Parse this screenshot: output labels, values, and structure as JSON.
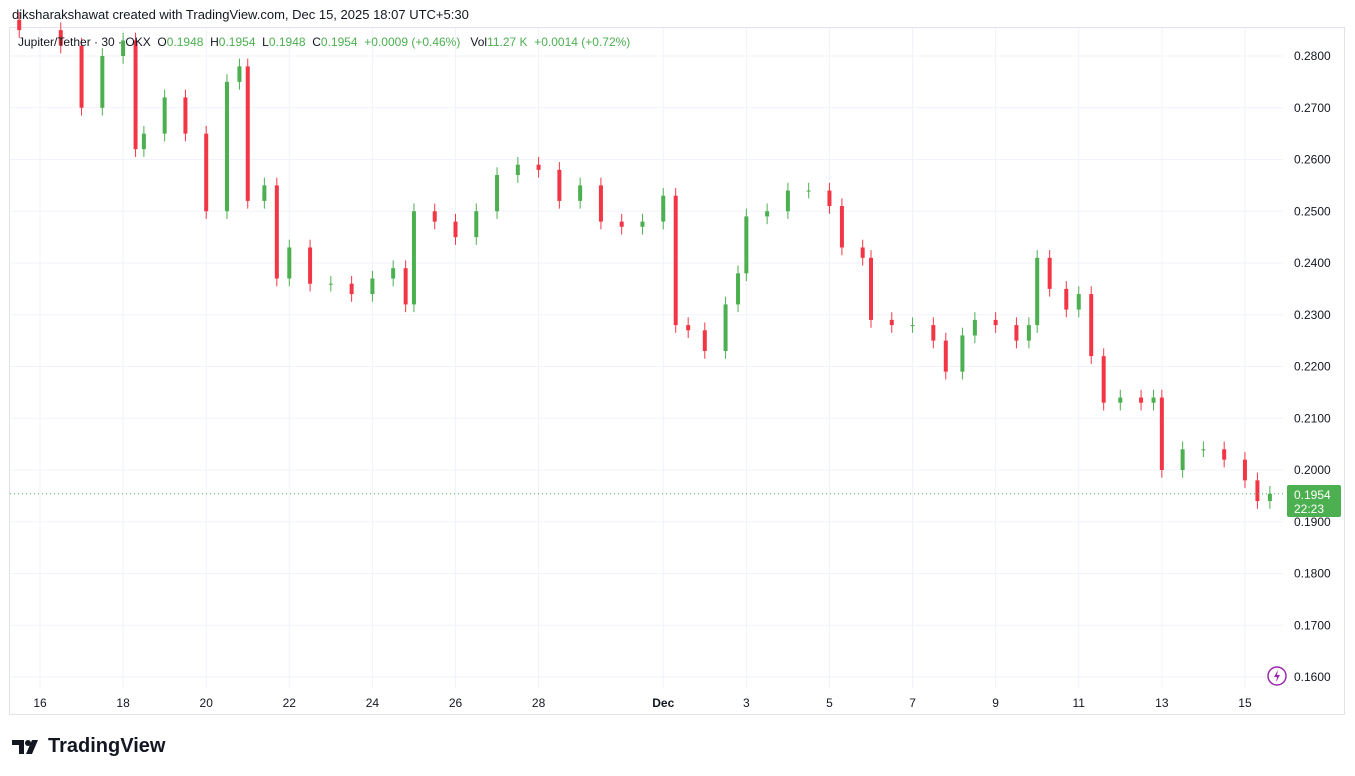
{
  "credit": "diksharakshawat created with TradingView.com, Dec 15, 2025 18:07 UTC+5:30",
  "legend": {
    "symbol": "Jupiter/Tether · 30 · OKX",
    "o_label": "O",
    "o": "0.1948",
    "h_label": "H",
    "h": "0.1954",
    "l_label": "L",
    "l": "0.1948",
    "c_label": "C",
    "c": "0.1954",
    "change": "+0.0009 (+0.46%)",
    "vol_label": "Vol",
    "vol": "11.27 K",
    "vol_change": "+0.0014 (+0.72%)"
  },
  "price_tag": {
    "price": "0.1954",
    "countdown": "22:23",
    "color": "#4caf50"
  },
  "logo": "TradingView",
  "colors": {
    "up": "#4caf50",
    "down": "#f23645",
    "grid": "#f0f3fa"
  },
  "chart_data": {
    "type": "candlestick",
    "interval": "30",
    "ylim": [
      0.155,
      0.2875
    ],
    "y_ticks": [
      "0.2800",
      "0.2700",
      "0.2600",
      "0.2500",
      "0.2400",
      "0.2300",
      "0.2200",
      "0.2100",
      "0.2000",
      "0.1900",
      "0.1800",
      "0.1700",
      "0.1600"
    ],
    "x_ticks": [
      "16",
      "18",
      "20",
      "22",
      "24",
      "26",
      "28",
      "Dec",
      "3",
      "5",
      "7",
      "9",
      "11",
      "13",
      "15"
    ],
    "x": [
      "11-15.5",
      "11-16.5",
      "11-17",
      "11-17.5",
      "11-18",
      "11-18.3",
      "11-18.5",
      "11-19",
      "11-19.5",
      "11-20",
      "11-20.5",
      "11-20.8",
      "11-21",
      "11-21.4",
      "11-21.7",
      "11-22",
      "11-22.5",
      "11-23",
      "11-23.5",
      "11-24",
      "11-24.5",
      "11-24.8",
      "11-25",
      "11-25.5",
      "11-26",
      "11-26.5",
      "11-27",
      "11-27.5",
      "11-28",
      "11-28.5",
      "11-29",
      "11-29.5",
      "11-30",
      "11-30.5",
      "12-1",
      "12-1.3",
      "12-1.6",
      "12-2",
      "12-2.5",
      "12-2.8",
      "12-3",
      "12-3.5",
      "12-4",
      "12-4.5",
      "12-5",
      "12-5.3",
      "12-5.8",
      "12-6",
      "12-6.5",
      "12-7",
      "12-7.5",
      "12-7.8",
      "12-8.2",
      "12-8.5",
      "12-9",
      "12-9.5",
      "12-9.8",
      "12-10",
      "12-10.3",
      "12-10.7",
      "12-11",
      "12-11.3",
      "12-11.6",
      "12-12",
      "12-12.5",
      "12-12.8",
      "12-13",
      "12-13.5",
      "12-14",
      "12-14.5",
      "12-15",
      "12-15.3",
      "12-15.6"
    ],
    "close": [
      0.285,
      0.282,
      0.27,
      0.28,
      0.283,
      0.262,
      0.265,
      0.272,
      0.265,
      0.25,
      0.275,
      0.278,
      0.252,
      0.255,
      0.237,
      0.243,
      0.236,
      0.236,
      0.234,
      0.237,
      0.239,
      0.232,
      0.25,
      0.248,
      0.245,
      0.25,
      0.257,
      0.259,
      0.258,
      0.252,
      0.255,
      0.248,
      0.247,
      0.248,
      0.253,
      0.228,
      0.227,
      0.223,
      0.232,
      0.238,
      0.249,
      0.25,
      0.254,
      0.254,
      0.251,
      0.243,
      0.241,
      0.229,
      0.228,
      0.228,
      0.225,
      0.219,
      0.226,
      0.229,
      0.228,
      0.225,
      0.228,
      0.241,
      0.235,
      0.231,
      0.234,
      0.222,
      0.213,
      0.214,
      0.213,
      0.214,
      0.2,
      0.204,
      0.204,
      0.202,
      0.198,
      0.194,
      0.1954
    ],
    "last_price": 0.1954
  }
}
